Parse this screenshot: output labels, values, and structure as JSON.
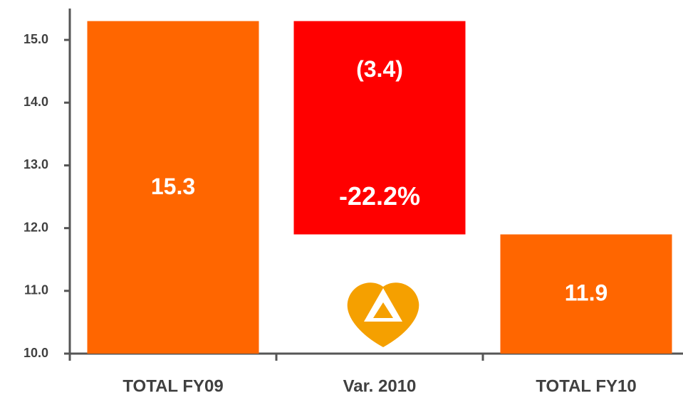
{
  "chart_data": {
    "type": "waterfall",
    "categories": [
      "TOTAL FY09",
      "Var. 2010",
      "TOTAL FY10"
    ],
    "values": [
      15.3,
      -3.4,
      11.9
    ],
    "value_labels": [
      "15.3",
      "(3.4)",
      "11.9"
    ],
    "colors": [
      "#ff6600",
      "#ff0000",
      "#ff6600"
    ],
    "change_label": "-22.2%",
    "ylim": [
      10,
      15.5
    ],
    "yticks": [
      {
        "value": 10,
        "label": "10.0"
      },
      {
        "value": 11,
        "label": "11.0"
      },
      {
        "value": 12,
        "label": "12.0"
      },
      {
        "value": 13,
        "label": "13.0"
      },
      {
        "value": 14,
        "label": "14.0"
      },
      {
        "value": 15,
        "label": "15.0"
      }
    ],
    "grid": false
  }
}
